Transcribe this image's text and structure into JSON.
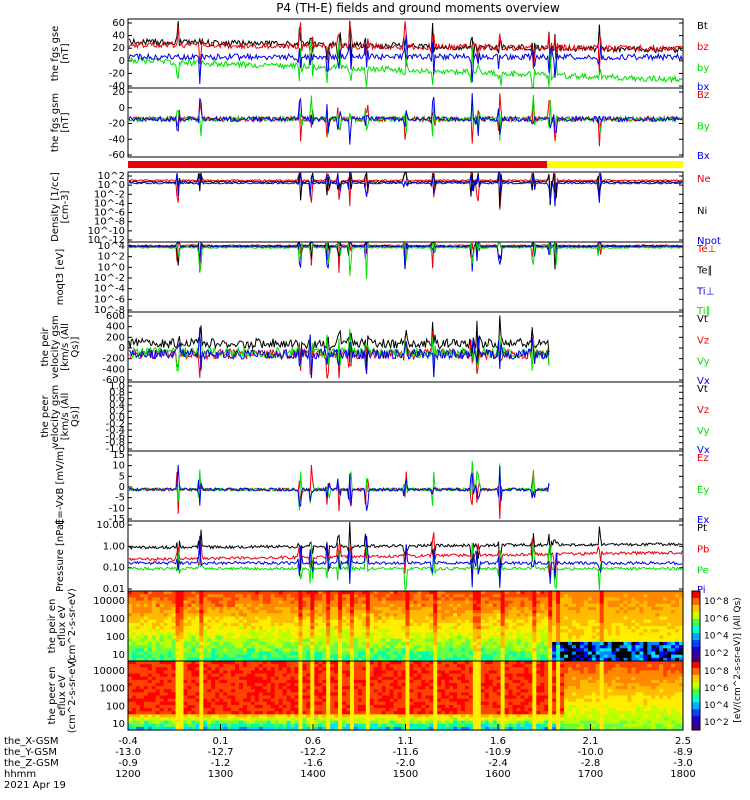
{
  "title": "P4 (TH-E) fields and ground moments overview",
  "x_ticks": [
    "1200",
    "1300",
    "1400",
    "1500",
    "1600",
    "1700",
    "1800"
  ],
  "ephemeris": {
    "labels": [
      "the_X-GSM",
      "the_Y-GSM",
      "the_Z-GSM",
      "hhmm",
      "2021 Apr 19"
    ],
    "rows": [
      [
        "-0.4",
        "0.1",
        "0.6",
        "1.1",
        "1.6",
        "2.1",
        "2.5"
      ],
      [
        "-13.0",
        "-12.7",
        "-12.2",
        "-11.6",
        "-10.9",
        "-10.0",
        "-8.9"
      ],
      [
        "-0.9",
        "-1.2",
        "-1.6",
        "-2.0",
        "-2.4",
        "-2.8",
        "-3.0"
      ]
    ]
  },
  "colorbar": {
    "label": "[eV/(cm^2-s-sr-eV)] (All Qs)",
    "ticks1": [
      "10^8",
      "10^6",
      "10^4",
      "10^2"
    ],
    "ticks2": [
      "10^8",
      "10^6",
      "10^4",
      "10^2"
    ]
  },
  "colors": {
    "black": "#000000",
    "red": "#e8000b",
    "green": "#00e000",
    "blue": "#0000ee",
    "yellow": "#ffff00"
  },
  "chart_data": [
    {
      "type": "line",
      "ylabel": "the fgs gse [nT]",
      "yticks": [
        "60",
        "40",
        "20",
        "0",
        "-20",
        "-40"
      ],
      "ylim": [
        -40,
        60
      ],
      "series": [
        {
          "name": "Bt",
          "color": "black",
          "base": 25
        },
        {
          "name": "bz",
          "color": "red",
          "base": 22
        },
        {
          "name": "by",
          "color": "green",
          "base": 3
        },
        {
          "name": "bx",
          "color": "blue",
          "base": 10
        }
      ]
    },
    {
      "type": "line",
      "ylabel": "the fgs gsm [nT]",
      "yticks": [
        "20",
        "0",
        "-20",
        "-40",
        "-60"
      ],
      "ylim": [
        -70,
        30
      ],
      "series": [
        {
          "name": "Bz",
          "color": "red",
          "base": 2
        },
        {
          "name": "By",
          "color": "green",
          "base": 5
        },
        {
          "name": "Bx",
          "color": "blue",
          "base": 0
        }
      ]
    },
    {
      "type": "bar",
      "ylabel": "",
      "note": "status bar",
      "segments": [
        {
          "color": "red",
          "until": "1645"
        },
        {
          "color": "yellow",
          "until": "1800"
        }
      ]
    },
    {
      "type": "line",
      "ylabel": "Density [1/cc] [cm-3]",
      "yticks": [
        "10^2",
        "10^0",
        "10^-2",
        "10^-4",
        "10^-6",
        "10^-8",
        "10^-10",
        "10^-12"
      ],
      "log": true,
      "series": [
        {
          "name": "Ne",
          "color": "red"
        },
        {
          "name": "Ni",
          "color": "black"
        },
        {
          "name": "Npot",
          "color": "blue"
        }
      ]
    },
    {
      "type": "line",
      "ylabel": "moqt3 [eV]",
      "yticks": [
        "10^4",
        "10^2",
        "10^0",
        "10^-2",
        "10^-4",
        "10^-6",
        "10^-8"
      ],
      "log": true,
      "series": [
        {
          "name": "Te⊥",
          "color": "red"
        },
        {
          "name": "Te∥",
          "color": "black"
        },
        {
          "name": "Ti⊥",
          "color": "blue"
        },
        {
          "name": "Ti∥",
          "color": "green"
        }
      ]
    },
    {
      "type": "line",
      "ylabel": "the peir velocity gsm [km/s (All Qs)]",
      "yticks": [
        "600",
        "400",
        "200",
        "0",
        "-200",
        "-400",
        "-600"
      ],
      "ylim": [
        -600,
        600
      ],
      "series": [
        {
          "name": "Vt",
          "color": "black"
        },
        {
          "name": "Vz",
          "color": "red"
        },
        {
          "name": "Vy",
          "color": "green"
        },
        {
          "name": "Vx",
          "color": "blue"
        }
      ]
    },
    {
      "type": "line",
      "ylabel": "the peer velocity gsm [km/s (All Qs)]",
      "yticks": [
        "1.0",
        "0.8",
        "0.6",
        "0.4",
        "0.2",
        "0.0",
        "-0.2",
        "-0.4",
        "-0.6",
        "-0.8",
        "-1.0"
      ],
      "ylim": [
        -1,
        1
      ],
      "series": [
        {
          "name": "Vt",
          "color": "black"
        },
        {
          "name": "Vz",
          "color": "red"
        },
        {
          "name": "Vy",
          "color": "green"
        },
        {
          "name": "Vx",
          "color": "blue"
        }
      ]
    },
    {
      "type": "line",
      "ylabel": "E=-VxB [mV/m]",
      "yticks": [
        "15",
        "10",
        "5",
        "0",
        "-5",
        "-10",
        "-15"
      ],
      "ylim": [
        -15,
        15
      ],
      "series": [
        {
          "name": "Ez",
          "color": "red"
        },
        {
          "name": "Ey",
          "color": "green"
        },
        {
          "name": "Ex",
          "color": "blue"
        }
      ]
    },
    {
      "type": "line",
      "ylabel": "Pressure [nPa]",
      "yticks": [
        "10.00",
        "1.00",
        "0.10",
        "0.01"
      ],
      "log": true,
      "series": [
        {
          "name": "Pt",
          "color": "black"
        },
        {
          "name": "Pb",
          "color": "red"
        },
        {
          "name": "Pe",
          "color": "green"
        },
        {
          "name": "Pi",
          "color": "blue"
        }
      ]
    },
    {
      "type": "heatmap",
      "ylabel": "the peir en eflux eV (cm^2-s-sr-eV)",
      "yticks": [
        "10000",
        "1000",
        "100",
        "10"
      ]
    },
    {
      "type": "heatmap",
      "ylabel": "the peer en eflux eV (cm^2-s-sr-eV)",
      "yticks": [
        "10000",
        "1000",
        "100",
        "10"
      ]
    }
  ]
}
